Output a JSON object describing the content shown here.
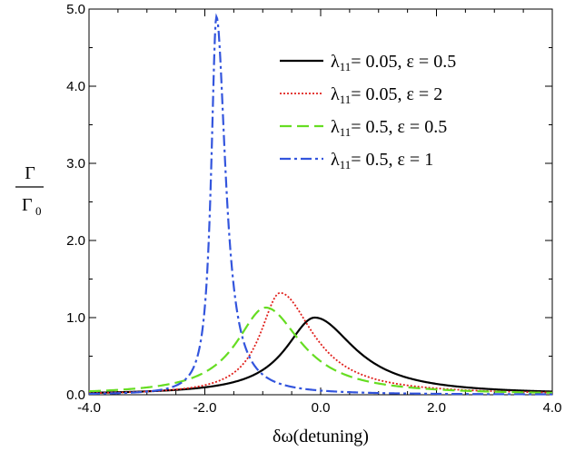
{
  "chart_data": {
    "type": "line",
    "title": "",
    "xlabel": "δω(detuning)",
    "ylabel_numerator": "Γ",
    "ylabel_denominator": "Γ",
    "ylabel_denominator_sub": "0",
    "xlim": [
      -4.0,
      4.0
    ],
    "ylim": [
      0.0,
      5.0
    ],
    "x_ticks": [
      "-4.0",
      "-2.0",
      "0.0",
      "2.0",
      "4.0"
    ],
    "y_ticks": [
      "0.0",
      "1.0",
      "2.0",
      "3.0",
      "4.0",
      "5.0"
    ],
    "grid": false,
    "legend_position": "top-right",
    "series": [
      {
        "name": "λ11= 0.05, ε = 0.5",
        "legend": {
          "lambda": "λ",
          "sub": "11",
          "rest": "= 0.05,  ε = 0.5"
        },
        "color": "#000000",
        "style": "solid",
        "peak_x": -0.1,
        "peak_y": 1.0,
        "width_left": 0.62,
        "width_right": 0.85
      },
      {
        "name": "λ11= 0.05, ε = 2",
        "legend": {
          "lambda": "λ",
          "sub": "11",
          "rest": "= 0.05,  ε = 2"
        },
        "color": "#e0201c",
        "style": "dotted",
        "peak_x": -0.7,
        "peak_y": 1.32,
        "width_left": 0.42,
        "width_right": 0.7
      },
      {
        "name": "λ11= 0.5, ε = 0.5",
        "legend": {
          "lambda": "λ",
          "sub": "11",
          "rest": "= 0.5,  ε = 0.5"
        },
        "color": "#66dd22",
        "style": "dashed",
        "peak_x": -0.95,
        "peak_y": 1.13,
        "width_left": 0.62,
        "width_right": 0.75
      },
      {
        "name": "λ11= 0.5, ε = 1",
        "legend": {
          "lambda": "λ",
          "sub": "11",
          "rest": "= 0.5,  ε = 1"
        },
        "color": "#3355dd",
        "style": "dashdot",
        "peak_x": -1.8,
        "peak_y": 4.9,
        "width_left": 0.11,
        "width_right": 0.19
      }
    ]
  }
}
